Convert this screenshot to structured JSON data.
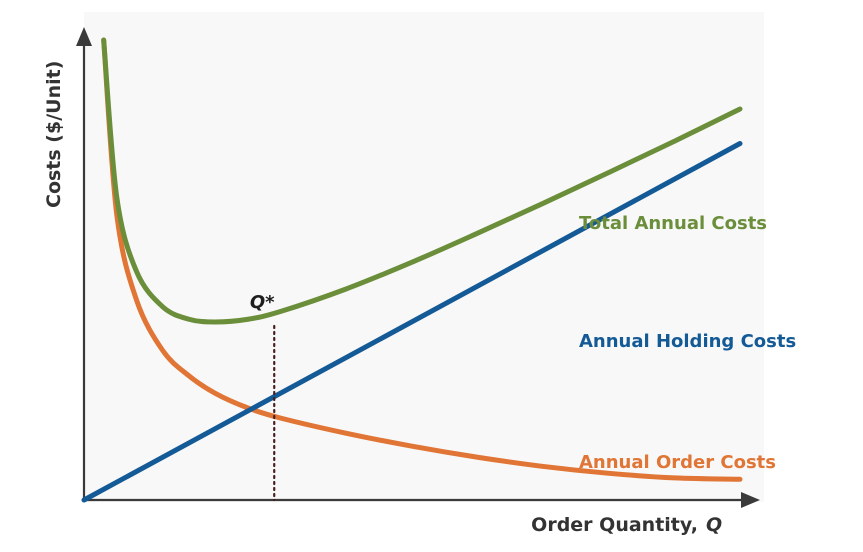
{
  "chart_data": {
    "type": "line",
    "title": "",
    "xlabel": "Order Quantity,",
    "xlabel_var": "Q",
    "ylabel": "Costs ($/Unit)",
    "grid": false,
    "legend": "inline labels at right end of curves",
    "optimum_label": "Q*",
    "series": [
      {
        "name": "Total Annual Costs",
        "color": "#6b8e3a",
        "points": [
          [
            0.03,
            1.0
          ],
          [
            0.05,
            0.658
          ],
          [
            0.08,
            0.497
          ],
          [
            0.12,
            0.42
          ],
          [
            0.16,
            0.393
          ],
          [
            0.2,
            0.387
          ],
          [
            0.25,
            0.393
          ],
          [
            0.3,
            0.41
          ],
          [
            0.4,
            0.459
          ],
          [
            0.5,
            0.517
          ],
          [
            0.6,
            0.58
          ],
          [
            0.7,
            0.645
          ],
          [
            0.8,
            0.712
          ],
          [
            0.9,
            0.78
          ],
          [
            1.0,
            0.85
          ]
        ]
      },
      {
        "name": "Annual Holding Costs",
        "color": "#145a96",
        "points": [
          [
            0.0,
            0.0
          ],
          [
            1.0,
            0.775
          ]
        ]
      },
      {
        "name": "Annual Order Costs",
        "color": "#e07535",
        "points": [
          [
            0.03,
            1.0
          ],
          [
            0.05,
            0.62
          ],
          [
            0.08,
            0.435
          ],
          [
            0.12,
            0.325
          ],
          [
            0.16,
            0.27
          ],
          [
            0.2,
            0.232
          ],
          [
            0.25,
            0.2
          ],
          [
            0.3,
            0.178
          ],
          [
            0.4,
            0.145
          ],
          [
            0.5,
            0.117
          ],
          [
            0.6,
            0.093
          ],
          [
            0.7,
            0.073
          ],
          [
            0.8,
            0.058
          ],
          [
            0.9,
            0.048
          ],
          [
            1.0,
            0.045
          ]
        ]
      }
    ],
    "optimum": {
      "x": 0.29,
      "y": 0.387,
      "intersection_y": 0.225
    }
  }
}
